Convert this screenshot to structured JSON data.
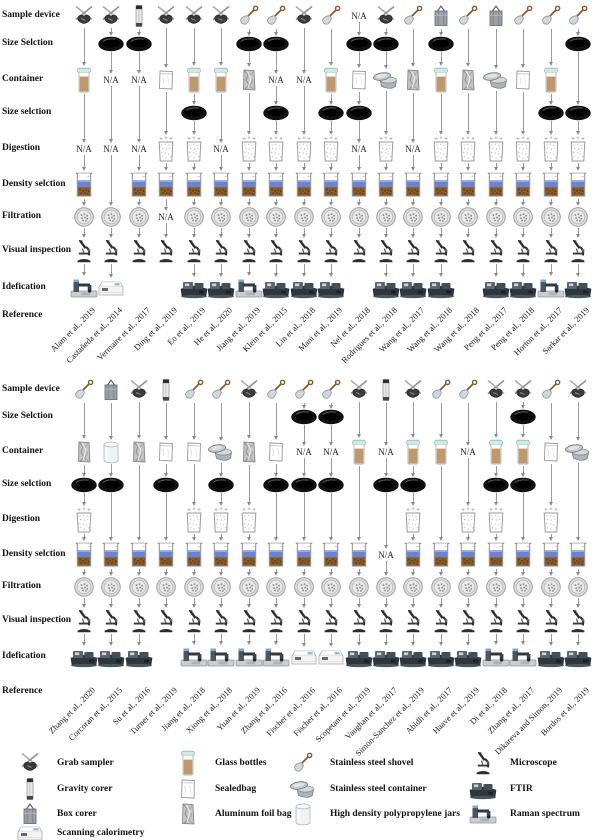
{
  "na_label": "N/A",
  "rows": [
    "Sample device",
    "Size Selction",
    "Container",
    "Size selction",
    "Digestion",
    "Density selction",
    "Filtration",
    "Visual inspection",
    "Idefication",
    "Reference"
  ],
  "colors": {
    "arrow": "#9a9a9a",
    "sieve": "#111111",
    "bottle_content": "#c0996a",
    "density_liquid": "#6c84cf",
    "density_sediment": "#8a5a28",
    "shovel_handle": "#8a5a2b",
    "na_text": "#222222"
  },
  "panels": [
    {
      "name": "top-panel",
      "columns": [
        {
          "ref": "Alam et al., 2019",
          "steps": [
            "grab",
            null,
            "bottle",
            null,
            "NA",
            "density",
            "filter",
            "scope",
            "raman"
          ]
        },
        {
          "ref": "Castañeda et al., 2014",
          "steps": [
            "grab",
            "sieve",
            "NA",
            null,
            "NA",
            null,
            "filter",
            "scope",
            "cal"
          ]
        },
        {
          "ref": "Vermaire et al., 2017",
          "steps": [
            "corer",
            "sieve",
            "NA",
            null,
            "NA",
            "density",
            "filter",
            "scope",
            null
          ]
        },
        {
          "ref": "Ding et al., 2019",
          "steps": [
            "grab",
            null,
            "bag",
            null,
            "digest",
            "density",
            "NA",
            "scope",
            null
          ]
        },
        {
          "ref": "Eo et al., 2019",
          "steps": [
            "grab",
            null,
            "bottle",
            "sieve",
            "digest",
            "density",
            "filter",
            "scope",
            "ftir"
          ]
        },
        {
          "ref": "He et al., 2020",
          "steps": [
            "grab",
            null,
            "bottle",
            null,
            "NA",
            "density",
            "filter",
            "scope",
            "ftir"
          ]
        },
        {
          "ref": "Jiang et al., 2019",
          "steps": [
            "shovel",
            "sieve",
            "foil",
            null,
            "digest",
            "density",
            "filter",
            "scope",
            "raman"
          ]
        },
        {
          "ref": "Klein et al., 2015",
          "steps": [
            "shovel",
            "sieve",
            "NA",
            "sieve",
            "digest",
            "density",
            "filter",
            "scope",
            "ftir"
          ]
        },
        {
          "ref": "Lin et al., 2018",
          "steps": [
            "grab",
            null,
            "NA",
            null,
            "digest",
            "density",
            "filter",
            "scope",
            "ftir"
          ]
        },
        {
          "ref": "Mani et al., 2019",
          "steps": [
            "shovel",
            null,
            "bottle",
            "sieve",
            "digest",
            "density",
            "filter",
            "scope",
            "ftir"
          ]
        },
        {
          "ref": "Nel et al., 2018",
          "steps": [
            "NA",
            "sieve",
            "bag",
            "sieve",
            "NA",
            "density",
            "filter",
            "scope",
            null
          ]
        },
        {
          "ref": "Rodrigues et al., 2018",
          "steps": [
            "grab",
            "sieve",
            "steel",
            null,
            "digest",
            "density",
            "filter",
            "scope",
            "ftir"
          ]
        },
        {
          "ref": "Wang et al., 2017",
          "steps": [
            "shovel",
            null,
            "foil",
            null,
            "NA",
            "density",
            "filter",
            "scope",
            "ftir"
          ]
        },
        {
          "ref": "Wang et al., 2018",
          "steps": [
            "box",
            "sieve",
            "bottle",
            null,
            "digest",
            "density",
            "filter",
            "scope",
            "ftir"
          ]
        },
        {
          "ref": "Wang et al., 2018",
          "steps": [
            "shovel",
            null,
            "foil",
            null,
            "digest",
            "density",
            "filter",
            "scope",
            null
          ]
        },
        {
          "ref": "Peng et al., 2017",
          "steps": [
            "box",
            null,
            "steel",
            null,
            "digest",
            "density",
            "filter",
            "scope",
            "ftir"
          ]
        },
        {
          "ref": "Peng et al., 2018",
          "steps": [
            "shovel",
            null,
            "bag",
            null,
            "digest",
            "density",
            "filter",
            "scope",
            "ftir"
          ]
        },
        {
          "ref": "Horton et al., 2017",
          "steps": [
            "shovel",
            null,
            "bottle",
            "sieve",
            "digest",
            "density",
            "filter",
            "scope",
            "raman"
          ]
        },
        {
          "ref": "Sarkar et al., 2019",
          "steps": [
            "shovel",
            "sieve",
            null,
            "sieve",
            "digest",
            "density",
            "filter",
            "scope",
            "ftir"
          ]
        }
      ]
    },
    {
      "name": "bottom-panel",
      "columns": [
        {
          "ref": "Zhang et al., 2020",
          "steps": [
            "shovel",
            null,
            "foil",
            "sieve",
            "digest",
            "density",
            "filter",
            "scope",
            "ftir"
          ]
        },
        {
          "ref": "Corcoran et al., 2015",
          "steps": [
            "box",
            null,
            "jar",
            "sieve",
            null,
            "density",
            "filter",
            "scope",
            "ftir"
          ]
        },
        {
          "ref": "Su et al., 2016",
          "steps": [
            "grab",
            null,
            "foil",
            null,
            null,
            "density",
            "filter",
            "scope",
            "ftir"
          ]
        },
        {
          "ref": "Turner et al., 2019",
          "steps": [
            "corer",
            null,
            "bag",
            "sieve",
            null,
            "density",
            "filter",
            "scope",
            null
          ]
        },
        {
          "ref": "Jiang et al., 2018",
          "steps": [
            "shovel",
            null,
            "bag",
            null,
            "digest",
            "density",
            "filter",
            "scope",
            "raman"
          ]
        },
        {
          "ref": "Xiong et al., 2018",
          "steps": [
            "shovel",
            null,
            "steel",
            "sieve",
            "digest",
            "density",
            "filter",
            "scope",
            "raman"
          ]
        },
        {
          "ref": "Yuan et al., 2019",
          "steps": [
            "grab",
            null,
            "foil",
            null,
            "digest",
            "density",
            "filter",
            "scope",
            "raman"
          ]
        },
        {
          "ref": "Zhang et al., 2016",
          "steps": [
            "shovel",
            null,
            "bag",
            "sieve",
            null,
            "density",
            "filter",
            "scope",
            "raman"
          ]
        },
        {
          "ref": "Fischer et al., 2016",
          "steps": [
            "shovel",
            "sieve",
            "NA",
            "sieve",
            null,
            "density",
            "filter",
            "scope",
            "cal"
          ]
        },
        {
          "ref": "Fischer et al., 2016",
          "steps": [
            "shovel",
            "sieve",
            "NA",
            "sieve",
            null,
            "density",
            "filter",
            "scope",
            "cal"
          ]
        },
        {
          "ref": "Scopetani et al., 2019",
          "steps": [
            "grab",
            null,
            "bottle",
            null,
            null,
            "density",
            "filter",
            "scope",
            "ftir"
          ]
        },
        {
          "ref": "Vaughan et al., 2017",
          "steps": [
            "corer",
            null,
            "NA",
            "sieve",
            null,
            "NA",
            "filter",
            "scope",
            "ftir"
          ]
        },
        {
          "ref": "Simon-Sanchez et al., 2019",
          "steps": [
            "grab",
            null,
            "bottle",
            "sieve",
            "digest",
            "density",
            "filter",
            "scope",
            "ftir"
          ]
        },
        {
          "ref": "Abidli et al., 2017",
          "steps": [
            "shovel",
            null,
            "bottle",
            null,
            null,
            "density",
            "filter",
            "scope",
            "ftir"
          ]
        },
        {
          "ref": "Haave et al., 2019",
          "steps": [
            "shovel",
            null,
            "NA",
            null,
            "digest",
            "density",
            "filter",
            "scope",
            "ftir"
          ]
        },
        {
          "ref": "Di et al., 2018",
          "steps": [
            "grab",
            null,
            "bottle",
            "sieve",
            "digest",
            "density",
            "filter",
            "scope",
            "raman"
          ]
        },
        {
          "ref": "Zhang et al., 2017",
          "steps": [
            "grab",
            "sieve",
            "bottle",
            "sieve",
            null,
            "density",
            "filter",
            "scope",
            "raman"
          ]
        },
        {
          "ref": "Dikareva and Simon, 2019",
          "steps": [
            "shovel",
            null,
            "bag",
            null,
            "digest",
            "density",
            "filter",
            "scope",
            "ftir"
          ]
        },
        {
          "ref": "Bordos et al., 2019",
          "steps": [
            "grab",
            null,
            "steel",
            null,
            null,
            "density",
            "filter",
            "scope",
            "ftir"
          ]
        }
      ]
    }
  ],
  "legend": {
    "columns": [
      {
        "items": [
          {
            "icon": "grab",
            "label": "Grab sampler"
          },
          {
            "icon": "corer",
            "label": "Gravity corer"
          },
          {
            "icon": "box",
            "label": "Box corer"
          },
          {
            "icon": "cal",
            "label": "Scanning calorimetry"
          }
        ]
      },
      {
        "items": [
          {
            "icon": "bottle",
            "label": "Glass  bottles"
          },
          {
            "icon": "bag",
            "label": "Sealedbag"
          },
          {
            "icon": "foil",
            "label": "Aluminum foil bag"
          }
        ]
      },
      {
        "items": [
          {
            "icon": "shovel",
            "label": "Stainless steel shovel"
          },
          {
            "icon": "steel",
            "label": "Stainless steel container"
          },
          {
            "icon": "jar",
            "label": "High density polypropylene jars"
          }
        ]
      },
      {
        "items": [
          {
            "icon": "scope",
            "label": "Microscope"
          },
          {
            "icon": "ftir",
            "label": "FTIR"
          },
          {
            "icon": "raman",
            "label": "Raman spectrum"
          }
        ]
      }
    ]
  }
}
